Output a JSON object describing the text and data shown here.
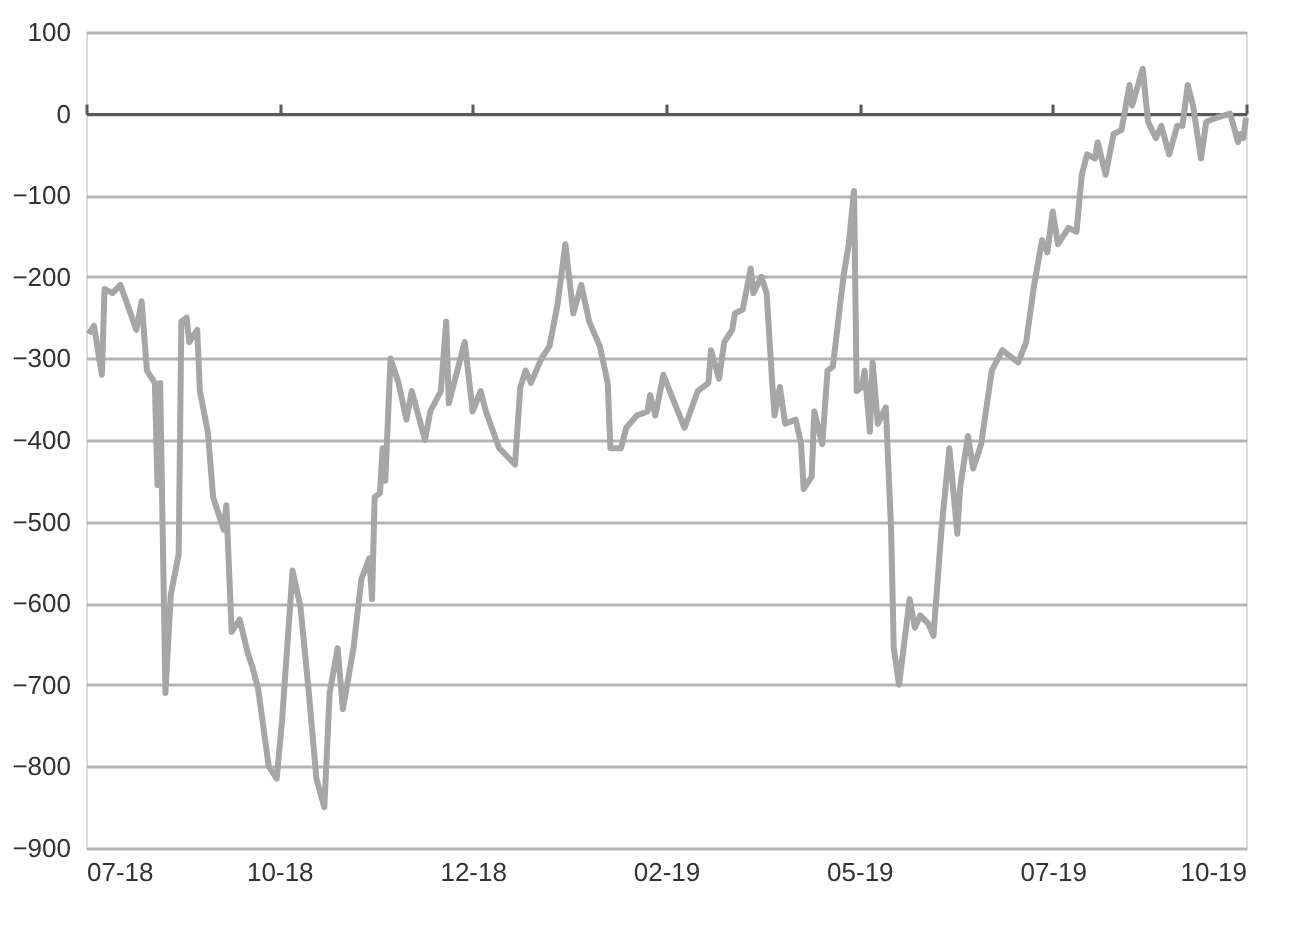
{
  "chart_data": {
    "type": "line",
    "x": [
      "2018-07-23",
      "2018-07-25",
      "2018-07-28",
      "2018-07-29",
      "2018-08-01",
      "2018-08-04",
      "2018-08-10",
      "2018-08-12",
      "2018-08-14",
      "2018-08-17",
      "2018-08-18",
      "2018-08-19",
      "2018-08-21",
      "2018-08-23",
      "2018-08-26",
      "2018-08-27",
      "2018-08-29",
      "2018-08-30",
      "2018-09-02",
      "2018-09-03",
      "2018-09-06",
      "2018-09-08",
      "2018-09-12",
      "2018-09-13",
      "2018-09-15",
      "2018-09-18",
      "2018-09-21",
      "2018-09-23",
      "2018-09-25",
      "2018-09-29",
      "2018-10-02",
      "2018-10-04",
      "2018-10-08",
      "2018-10-11",
      "2018-10-14",
      "2018-10-17",
      "2018-10-20",
      "2018-10-22",
      "2018-10-25",
      "2018-10-27",
      "2018-10-31",
      "2018-11-03",
      "2018-11-06",
      "2018-11-07",
      "2018-11-08",
      "2018-11-10",
      "2018-11-11",
      "2018-11-12",
      "2018-11-14",
      "2018-11-17",
      "2018-11-20",
      "2018-11-22",
      "2018-11-27",
      "2018-11-29",
      "2018-12-03",
      "2018-12-05",
      "2018-12-06",
      "2018-12-12",
      "2018-12-15",
      "2018-12-18",
      "2018-12-20",
      "2018-12-25",
      "2018-12-31",
      "2019-01-02",
      "2019-01-04",
      "2019-01-06",
      "2019-01-10",
      "2019-01-13",
      "2019-01-16",
      "2019-01-19",
      "2019-01-22",
      "2019-01-25",
      "2019-01-28",
      "2019-02-01",
      "2019-02-04",
      "2019-02-05",
      "2019-02-09",
      "2019-02-11",
      "2019-02-15",
      "2019-02-19",
      "2019-02-20",
      "2019-02-22",
      "2019-02-25",
      "2019-02-28",
      "2019-03-05",
      "2019-03-10",
      "2019-03-14",
      "2019-03-15",
      "2019-03-18",
      "2019-03-20",
      "2019-03-23",
      "2019-03-24",
      "2019-03-27",
      "2019-03-30",
      "2019-03-31",
      "2019-04-03",
      "2019-04-05",
      "2019-04-07",
      "2019-04-08",
      "2019-04-10",
      "2019-04-12",
      "2019-04-16",
      "2019-04-18",
      "2019-04-19",
      "2019-04-22",
      "2019-04-23",
      "2019-04-26",
      "2019-04-28",
      "2019-04-30",
      "2019-05-04",
      "2019-05-06",
      "2019-05-08",
      "2019-05-09",
      "2019-05-11",
      "2019-05-12",
      "2019-05-14",
      "2019-05-15",
      "2019-05-17",
      "2019-05-20",
      "2019-05-22",
      "2019-05-23",
      "2019-05-25",
      "2019-05-29",
      "2019-05-31",
      "2019-06-02",
      "2019-06-05",
      "2019-06-07",
      "2019-06-10",
      "2019-06-13",
      "2019-06-16",
      "2019-06-17",
      "2019-06-20",
      "2019-06-22",
      "2019-06-25",
      "2019-06-29",
      "2019-07-03",
      "2019-07-05",
      "2019-07-09",
      "2019-07-12",
      "2019-07-15",
      "2019-07-18",
      "2019-07-20",
      "2019-07-22",
      "2019-07-24",
      "2019-07-28",
      "2019-07-31",
      "2019-08-02",
      "2019-08-04",
      "2019-08-07",
      "2019-08-08",
      "2019-08-11",
      "2019-08-14",
      "2019-08-17",
      "2019-08-20",
      "2019-08-21",
      "2019-08-25",
      "2019-08-27",
      "2019-08-30",
      "2019-09-01",
      "2019-09-04",
      "2019-09-07",
      "2019-09-09",
      "2019-09-11",
      "2019-09-13",
      "2019-09-16",
      "2019-09-18",
      "2019-09-22",
      "2019-09-27",
      "2019-09-30",
      "2019-10-01",
      "2019-10-02",
      "2019-10-03"
    ],
    "series": [
      {
        "color": "#a6a6a6",
        "values": [
          -270,
          -260,
          -320,
          -215,
          -220,
          -210,
          -265,
          -230,
          -315,
          -330,
          -455,
          -330,
          -710,
          -590,
          -540,
          -255,
          -250,
          -280,
          -265,
          -340,
          -390,
          -470,
          -510,
          -480,
          -635,
          -620,
          -660,
          -680,
          -705,
          -800,
          -815,
          -745,
          -560,
          -605,
          -705,
          -815,
          -850,
          -710,
          -655,
          -730,
          -655,
          -570,
          -545,
          -595,
          -470,
          -465,
          -410,
          -450,
          -300,
          -330,
          -375,
          -340,
          -400,
          -365,
          -340,
          -255,
          -355,
          -280,
          -365,
          -340,
          -365,
          -410,
          -430,
          -335,
          -315,
          -330,
          -300,
          -285,
          -235,
          -160,
          -245,
          -210,
          -255,
          -285,
          -330,
          -410,
          -410,
          -385,
          -370,
          -365,
          -345,
          -370,
          -320,
          -345,
          -385,
          -340,
          -330,
          -290,
          -325,
          -280,
          -265,
          -245,
          -240,
          -190,
          -220,
          -200,
          -220,
          -325,
          -370,
          -335,
          -380,
          -375,
          -405,
          -460,
          -445,
          -365,
          -405,
          -315,
          -310,
          -200,
          -160,
          -95,
          -340,
          -335,
          -315,
          -390,
          -305,
          -380,
          -360,
          -510,
          -655,
          -700,
          -595,
          -630,
          -615,
          -625,
          -640,
          -510,
          -410,
          -515,
          -460,
          -395,
          -435,
          -405,
          -315,
          -290,
          -295,
          -305,
          -280,
          -210,
          -155,
          -170,
          -120,
          -160,
          -140,
          -145,
          -75,
          -50,
          -55,
          -35,
          -75,
          -25,
          -20,
          35,
          10,
          55,
          -10,
          -30,
          -15,
          -50,
          -15,
          -15,
          35,
          10,
          -55,
          -10,
          -5,
          0,
          -35,
          -25,
          -30,
          -5
        ]
      }
    ],
    "xlim": [
      "2018-07-22",
      "2019-10-03"
    ],
    "xticks": [
      {
        "value": "2018-07-22",
        "label": "07-18"
      },
      {
        "value": "2018-10-03",
        "label": "10-18"
      },
      {
        "value": "2018-12-15",
        "label": "12-18"
      },
      {
        "value": "2019-02-26",
        "label": "02-19"
      },
      {
        "value": "2019-05-10",
        "label": "05-19"
      },
      {
        "value": "2019-07-22",
        "label": "07-19"
      },
      {
        "value": "2019-10-03",
        "label": "10-19"
      }
    ],
    "ylim": [
      -900,
      100
    ],
    "yticks": [
      -900,
      -800,
      -700,
      -600,
      -500,
      -400,
      -300,
      -200,
      -100,
      0,
      100
    ],
    "grid": "y",
    "legend": false,
    "marker": "none",
    "line_style": "solid"
  }
}
